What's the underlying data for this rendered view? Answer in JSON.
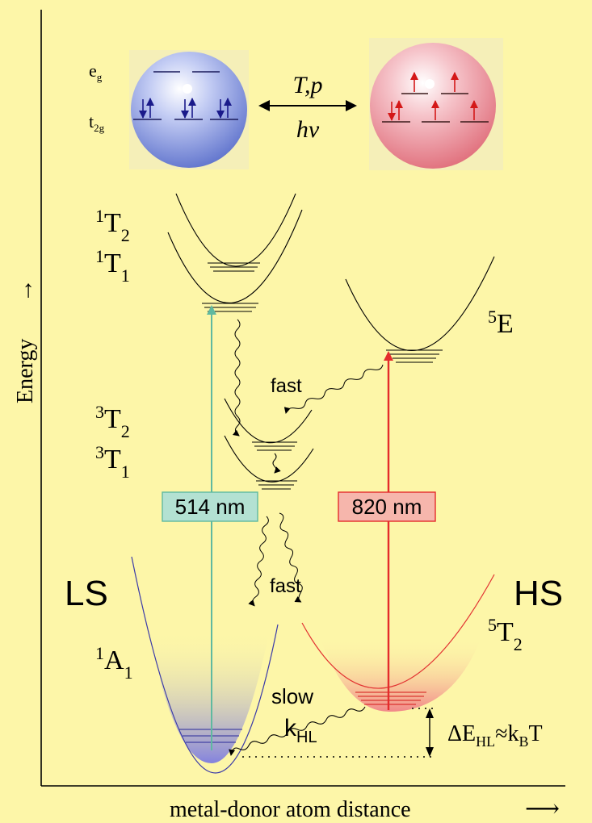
{
  "axes": {
    "y_label": "Energy",
    "y_arrow": "→",
    "x_label": "metal-donor atom distance",
    "x_arrow": "⟶"
  },
  "orbitals": {
    "eg_base": "e",
    "eg_sub": "g",
    "t2g_base": "t",
    "t2g_sub": "2g"
  },
  "conversion": {
    "top": "T,p",
    "bottom": "hν"
  },
  "states": {
    "t2_1": {
      "sup": "1",
      "base": "T",
      "sub": "2"
    },
    "t1_1": {
      "sup": "1",
      "base": "T",
      "sub": "1"
    },
    "t2_3": {
      "sup": "3",
      "base": "T",
      "sub": "2"
    },
    "t1_3": {
      "sup": "3",
      "base": "T",
      "sub": "1"
    },
    "e_5": {
      "sup": "5",
      "base": "E"
    },
    "a1_1": {
      "sup": "1",
      "base": "A",
      "sub": "1"
    },
    "t2_5": {
      "sup": "5",
      "base": "T",
      "sub": "2"
    }
  },
  "labels": {
    "ls": "LS",
    "hs": "HS",
    "fast_upper": "fast",
    "fast_lower": "fast",
    "slow": "slow",
    "k_base": "k",
    "k_sub": "HL",
    "delta_e": "ΔE",
    "delta_sub": "HL",
    "approx": "≈k",
    "kb_sub": "B",
    "temp": "T"
  },
  "excitations": {
    "green": {
      "label": "514 nm",
      "color": "#5fb9a0",
      "box": "#b3e1d2"
    },
    "red": {
      "label": "820 nm",
      "color": "#e42c2c",
      "box": "#f6b6ac"
    }
  },
  "colors": {
    "background": "#fdf6a8",
    "ls_sphere": "#7a8ed8",
    "hs_sphere": "#ec8a92",
    "ls_well": "#6a6ad8",
    "hs_well": "#e85858",
    "arrow_dark": "#1a1a8a",
    "arrow_red": "#d41818"
  }
}
